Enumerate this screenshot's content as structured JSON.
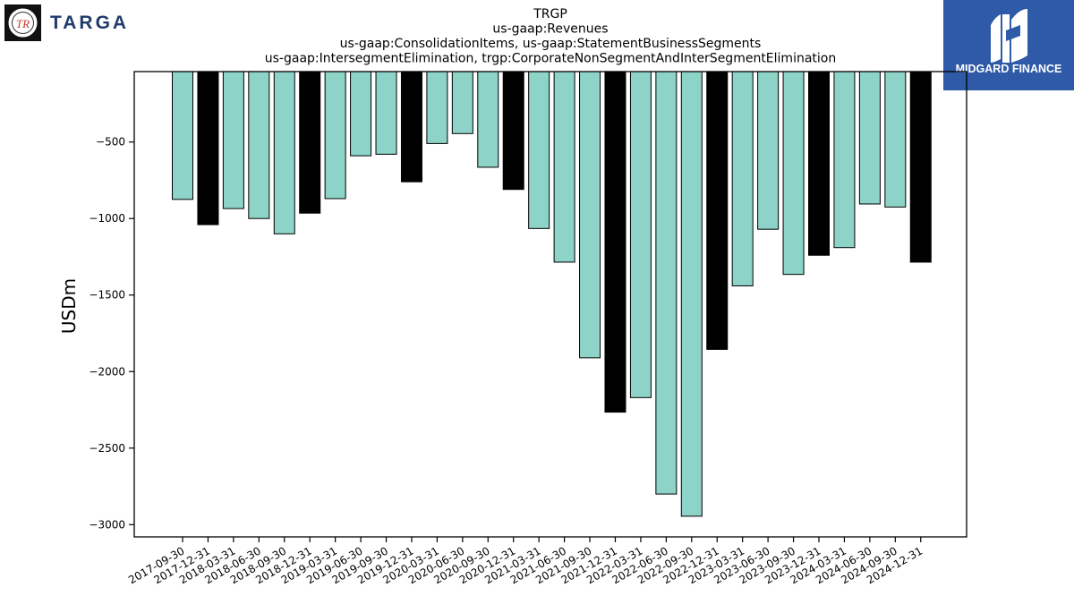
{
  "branding": {
    "left_logo_text": "TARGA",
    "left_logo_monogram": "TR",
    "right_logo_text": "MIDGARD FINANCE"
  },
  "colors": {
    "series_main": "#8dd3c7",
    "series_q4": "#000000",
    "bar_edge": "#000000",
    "brand_navy": "#1f3a6b",
    "brand_blue": "#2f5aa8"
  },
  "chart_data": {
    "type": "bar",
    "title_lines": [
      "TRGP",
      "us-gaap:Revenues",
      "us-gaap:ConsolidationItems, us-gaap:StatementBusinessSegments",
      "us-gaap:IntersegmentElimination, trgp:CorporateNonSegmentAndInterSegmentElimination"
    ],
    "xlabel": "",
    "ylabel": "USDm",
    "ylim": [
      -3080,
      -40
    ],
    "yticks": [
      -500,
      -1000,
      -1500,
      -2000,
      -2500,
      -3000
    ],
    "ytick_labels": [
      "−500",
      "−1000",
      "−1500",
      "−2000",
      "−2500",
      "−3000"
    ],
    "grid": false,
    "legend": "none",
    "categories": [
      "2017-09-30",
      "2017-12-31",
      "2018-03-31",
      "2018-06-30",
      "2018-09-30",
      "2018-12-31",
      "2019-03-31",
      "2019-06-30",
      "2019-09-30",
      "2019-12-31",
      "2020-03-31",
      "2020-06-30",
      "2020-09-30",
      "2020-12-31",
      "2021-03-31",
      "2021-06-30",
      "2021-09-30",
      "2021-12-31",
      "2022-03-31",
      "2022-06-30",
      "2022-09-30",
      "2022-12-31",
      "2023-03-31",
      "2023-06-30",
      "2023-09-30",
      "2023-12-31",
      "2024-03-31",
      "2024-06-30",
      "2024-09-30",
      "2024-12-31"
    ],
    "values": [
      -875,
      -1040,
      -935,
      -1000,
      -1100,
      -965,
      -870,
      -590,
      -580,
      -760,
      -510,
      -445,
      -665,
      -810,
      -1065,
      -1285,
      -1910,
      -2265,
      -2170,
      -2800,
      -2945,
      -1855,
      -1440,
      -1070,
      -1365,
      -1240,
      -1190,
      -905,
      -925,
      -1285
    ],
    "bar_colors": [
      "#8dd3c7",
      "#000000",
      "#8dd3c7",
      "#8dd3c7",
      "#8dd3c7",
      "#000000",
      "#8dd3c7",
      "#8dd3c7",
      "#8dd3c7",
      "#000000",
      "#8dd3c7",
      "#8dd3c7",
      "#8dd3c7",
      "#000000",
      "#8dd3c7",
      "#8dd3c7",
      "#8dd3c7",
      "#000000",
      "#8dd3c7",
      "#8dd3c7",
      "#8dd3c7",
      "#000000",
      "#8dd3c7",
      "#8dd3c7",
      "#8dd3c7",
      "#000000",
      "#8dd3c7",
      "#8dd3c7",
      "#8dd3c7",
      "#000000"
    ]
  }
}
